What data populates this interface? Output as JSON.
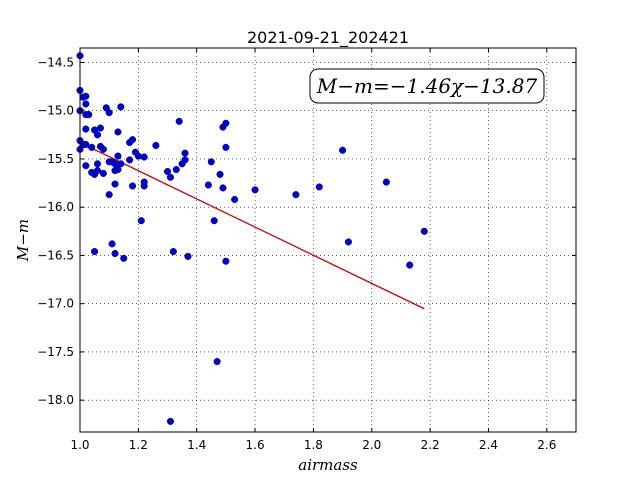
{
  "chart_data": {
    "type": "scatter",
    "title": "2021-09-21_202421",
    "xlabel": "airmass",
    "ylabel": "M−m",
    "annotation": "M−m=−1.46χ−13.87",
    "xlim": [
      1.0,
      2.7
    ],
    "ylim": [
      -18.33,
      -14.35
    ],
    "y_inverted": true,
    "grid": true,
    "x_ticks": [
      1.0,
      1.2,
      1.4,
      1.6,
      1.8,
      2.0,
      2.2,
      2.4,
      2.6
    ],
    "x_tick_labels": [
      "1.0",
      "1.2",
      "1.4",
      "1.6",
      "1.8",
      "2.0",
      "2.2",
      "2.4",
      "2.6"
    ],
    "y_ticks": [
      -14.5,
      -15.0,
      -15.5,
      -16.0,
      -16.5,
      -17.0,
      -17.5,
      -18.0
    ],
    "y_tick_labels": [
      "−14.5",
      "−15.0",
      "−15.5",
      "−16.0",
      "−16.5",
      "−17.0",
      "−17.5",
      "−18.0"
    ],
    "colors": {
      "points": "#0000cc",
      "fit": "#cc0000"
    },
    "fit": {
      "slope": -1.46,
      "intercept": -13.87,
      "x_range": [
        1.0,
        2.18
      ]
    },
    "points": [
      [
        1.0,
        -14.43
      ],
      [
        1.0,
        -14.79
      ],
      [
        1.01,
        -14.86
      ],
      [
        1.02,
        -14.85
      ],
      [
        1.02,
        -14.93
      ],
      [
        1.0,
        -15.0
      ],
      [
        1.02,
        -15.04
      ],
      [
        1.03,
        -15.04
      ],
      [
        1.02,
        -15.19
      ],
      [
        1.05,
        -15.2
      ],
      [
        1.06,
        -15.25
      ],
      [
        1.07,
        -15.18
      ],
      [
        1.09,
        -14.97
      ],
      [
        1.1,
        -15.02
      ],
      [
        1.14,
        -14.96
      ],
      [
        1.13,
        -15.22
      ],
      [
        1.0,
        -15.31
      ],
      [
        1.01,
        -15.35
      ],
      [
        1.02,
        -15.35
      ],
      [
        1.04,
        -15.38
      ],
      [
        1.07,
        -15.37
      ],
      [
        1.08,
        -15.4
      ],
      [
        1.1,
        -15.53
      ],
      [
        1.11,
        -15.53
      ],
      [
        1.12,
        -15.55
      ],
      [
        1.13,
        -15.47
      ],
      [
        1.0,
        -15.4
      ],
      [
        1.02,
        -15.57
      ],
      [
        1.04,
        -15.64
      ],
      [
        1.05,
        -15.66
      ],
      [
        1.06,
        -15.55
      ],
      [
        1.06,
        -15.62
      ],
      [
        1.08,
        -15.65
      ],
      [
        1.12,
        -15.62
      ],
      [
        1.13,
        -15.61
      ],
      [
        1.14,
        -15.55
      ],
      [
        1.17,
        -15.33
      ],
      [
        1.18,
        -15.3
      ],
      [
        1.19,
        -15.43
      ],
      [
        1.2,
        -15.47
      ],
      [
        1.22,
        -15.48
      ],
      [
        1.17,
        -15.51
      ],
      [
        1.12,
        -15.76
      ],
      [
        1.1,
        -15.87
      ],
      [
        1.18,
        -15.78
      ],
      [
        1.22,
        -15.78
      ],
      [
        1.22,
        -15.74
      ],
      [
        1.26,
        -15.36
      ],
      [
        1.3,
        -15.63
      ],
      [
        1.31,
        -15.69
      ],
      [
        1.33,
        -15.61
      ],
      [
        1.34,
        -15.11
      ],
      [
        1.35,
        -15.55
      ],
      [
        1.36,
        -15.44
      ],
      [
        1.36,
        -15.51
      ],
      [
        1.44,
        -15.77
      ],
      [
        1.45,
        -15.53
      ],
      [
        1.48,
        -15.66
      ],
      [
        1.49,
        -15.8
      ],
      [
        1.49,
        -15.17
      ],
      [
        1.5,
        -15.13
      ],
      [
        1.5,
        -15.38
      ],
      [
        1.53,
        -15.92
      ],
      [
        1.6,
        -15.82
      ],
      [
        1.74,
        -15.87
      ],
      [
        1.82,
        -15.79
      ],
      [
        1.9,
        -15.41
      ],
      [
        1.92,
        -16.36
      ],
      [
        2.05,
        -15.74
      ],
      [
        2.13,
        -16.6
      ],
      [
        2.18,
        -16.25
      ],
      [
        1.21,
        -16.14
      ],
      [
        1.46,
        -16.14
      ],
      [
        1.05,
        -16.46
      ],
      [
        1.11,
        -16.38
      ],
      [
        1.12,
        -16.48
      ],
      [
        1.15,
        -16.53
      ],
      [
        1.32,
        -16.46
      ],
      [
        1.37,
        -16.51
      ],
      [
        1.5,
        -16.56
      ],
      [
        1.47,
        -17.6
      ],
      [
        1.31,
        -18.22
      ]
    ]
  }
}
